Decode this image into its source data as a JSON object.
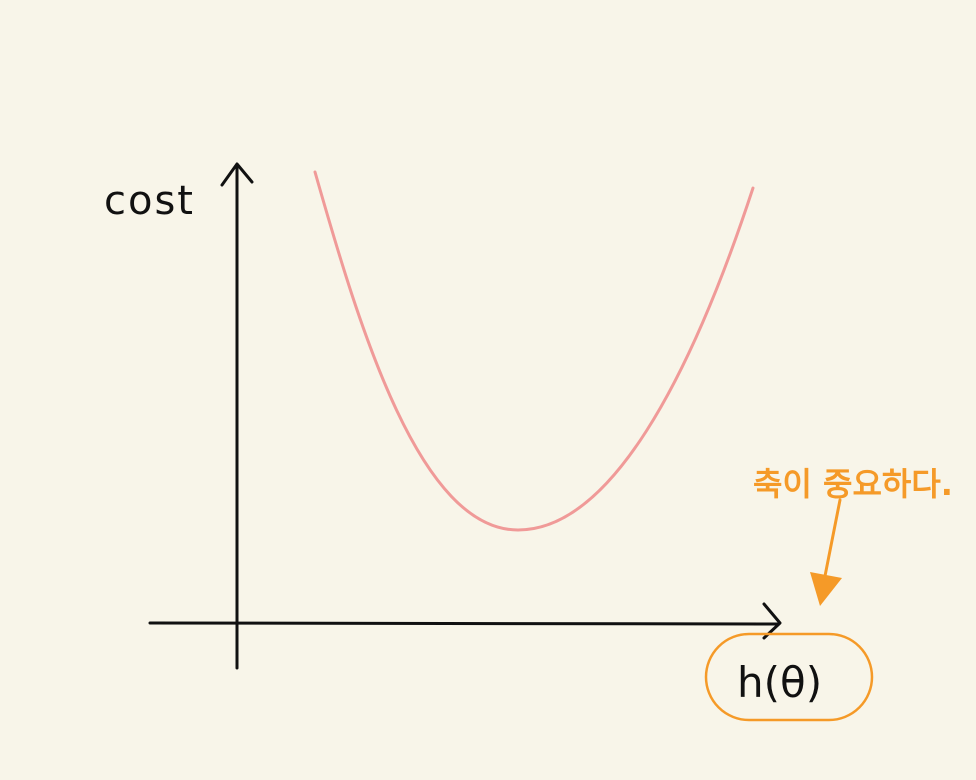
{
  "diagram": {
    "y_axis_label": "cost",
    "x_axis_label": "h(θ)",
    "annotation": "축이 중요하다.",
    "colors": {
      "background": "#f8f5e9",
      "ink": "#111111",
      "curve": "#f09a98",
      "accent": "#f59a28"
    }
  }
}
